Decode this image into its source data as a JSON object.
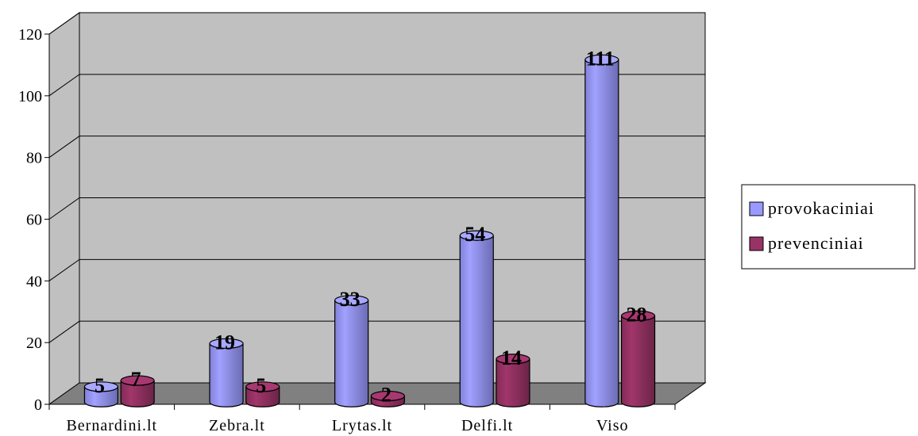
{
  "chart_data": {
    "type": "bar",
    "categories": [
      "Bernardini.lt",
      "Zebra.lt",
      "Lrytas.lt",
      "Delfi.lt",
      "Viso"
    ],
    "series": [
      {
        "name": "provokaciniai",
        "values": [
          5,
          19,
          33,
          54,
          111
        ],
        "color": "#9999ff"
      },
      {
        "name": "prevenciniai",
        "values": [
          7,
          5,
          2,
          14,
          28
        ],
        "color": "#993366"
      }
    ],
    "y_ticks": [
      "0",
      "20",
      "40",
      "60",
      "80",
      "100",
      "120"
    ],
    "ylim": [
      0,
      120
    ],
    "grid": true,
    "legend_position": "right",
    "wall_color": "#c0c0c0",
    "floor_color": "#808080"
  }
}
